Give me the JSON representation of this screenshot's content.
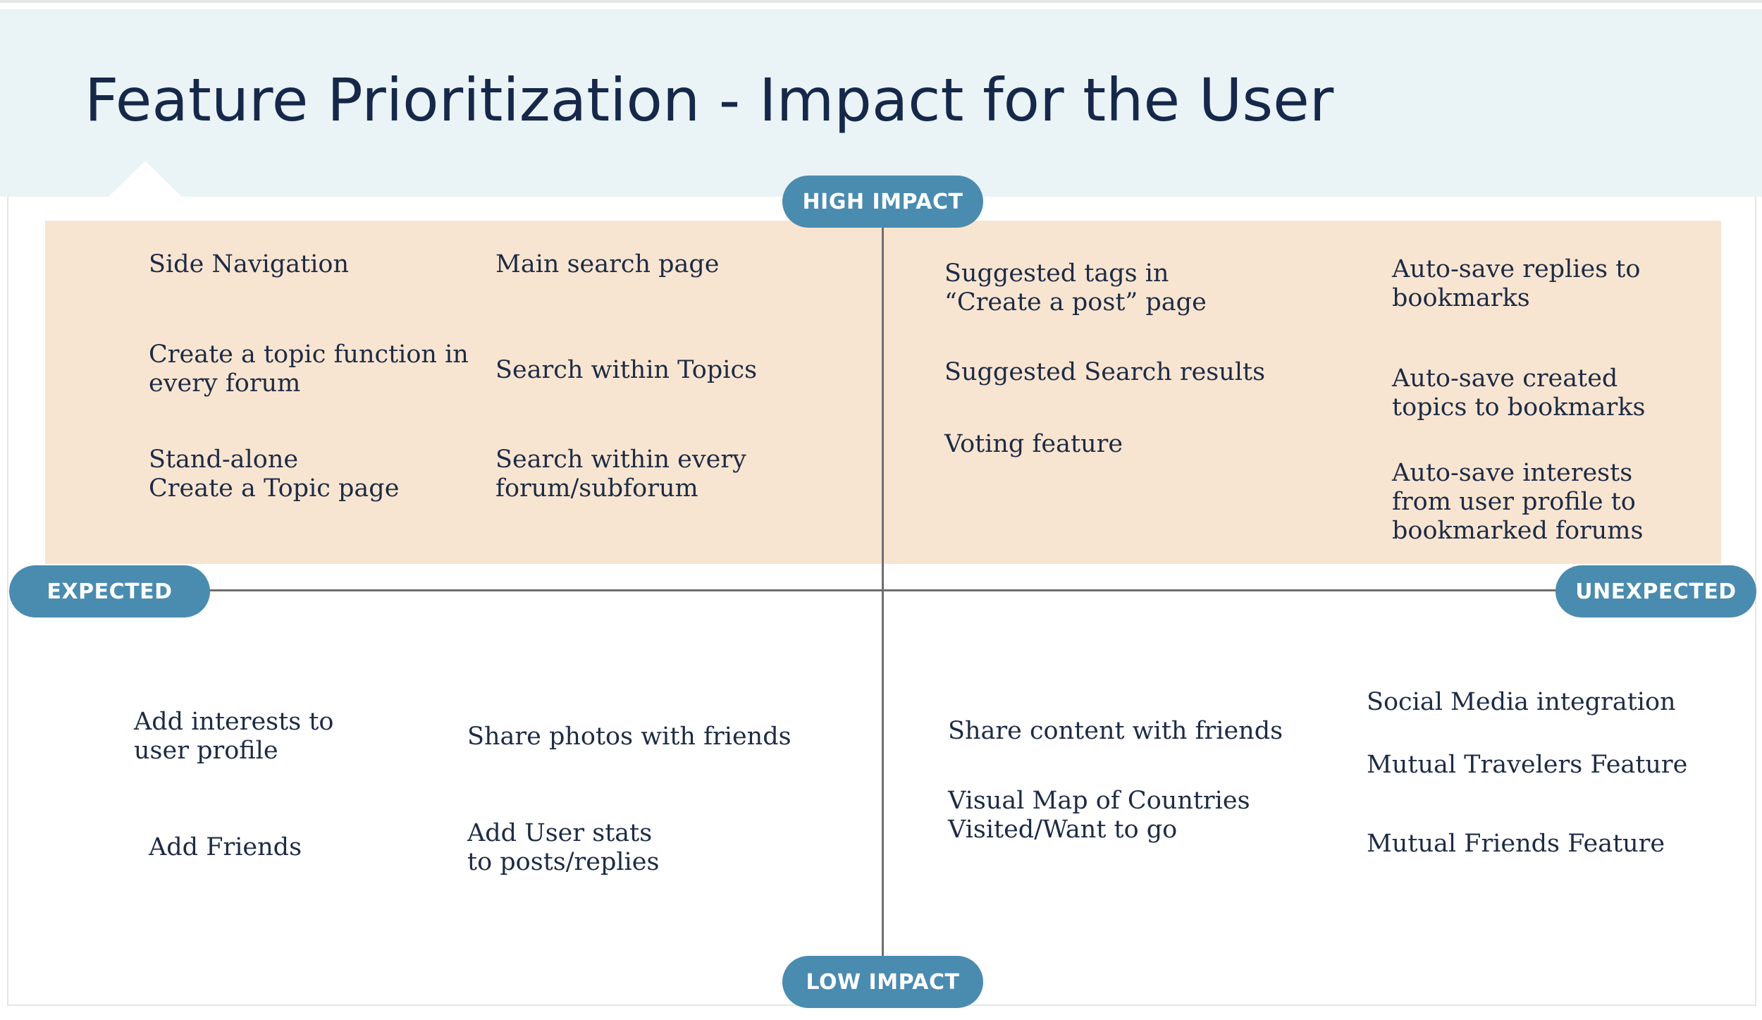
{
  "title": "Feature Prioritization - Impact for the User",
  "axes": {
    "top": "HIGH IMPACT",
    "bottom": "LOW IMPACT",
    "left": "EXPECTED",
    "right": "UNEXPECTED"
  },
  "colors": {
    "header_band": "#eaf3f6",
    "high_impact_band": "#f8e5d1",
    "pill": "#4a8bb0",
    "text": "#1d2b45",
    "axis_line": "#6e6e6e"
  },
  "quadrants": {
    "high_expected": {
      "col1": [
        "Side Navigation",
        "Create a topic function in\nevery forum",
        "Stand-alone\nCreate a Topic page"
      ],
      "col2": [
        "Main search page",
        "Search within Topics",
        "Search within every\nforum/subforum"
      ]
    },
    "high_unexpected": {
      "col1": [
        "Suggested tags in\n“Create a post” page",
        "Suggested Search results",
        "Voting feature"
      ],
      "col2": [
        "Auto-save replies to\nbookmarks",
        "Auto-save created\ntopics to bookmarks",
        "Auto-save interests\nfrom user profile to\nbookmarked forums"
      ]
    },
    "low_expected": {
      "col1": [
        "Add interests to\nuser profile",
        "Add Friends"
      ],
      "col2": [
        "Share photos with friends",
        "Add User stats\nto posts/replies"
      ]
    },
    "low_unexpected": {
      "col1": [
        "Share content with friends",
        "Visual Map of Countries\nVisited/Want to go"
      ],
      "col2": [
        "Social Media integration",
        "Mutual Travelers Feature",
        "Mutual Friends Feature"
      ]
    }
  }
}
